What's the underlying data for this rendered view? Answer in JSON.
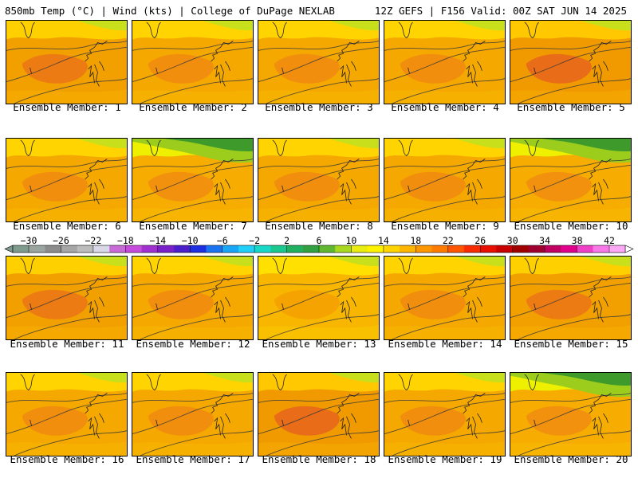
{
  "header": {
    "left": "850mb Temp (°C) | Wind (kts) | College of DuPage NEXLAB",
    "right": "12Z GEFS | F156 Valid: 00Z SAT JUN 14 2025"
  },
  "colorbar": {
    "labels": [
      "−30",
      "−26",
      "−22",
      "−18",
      "−14",
      "−10",
      "−6",
      "−2",
      "2",
      "6",
      "10",
      "14",
      "18",
      "22",
      "26",
      "30",
      "34",
      "38",
      "42"
    ],
    "colors": [
      "#7f9b8f",
      "#9aa59f",
      "#8c8c8c",
      "#a6a6a6",
      "#bcbcbc",
      "#d8d8e8",
      "#c86bd8",
      "#c64bdc",
      "#a030d0",
      "#7a20c8",
      "#4a1ec8",
      "#1c2ee0",
      "#1a74f0",
      "#1aa6f8",
      "#20d0f8",
      "#1ad8c8",
      "#1ac890",
      "#20b060",
      "#31a040",
      "#60b830",
      "#a8d820",
      "#e8ec10",
      "#fff200",
      "#ffd400",
      "#ffb400",
      "#ff9800",
      "#ff7c00",
      "#ff5400",
      "#f82c00",
      "#e80f00",
      "#c80000",
      "#a00000",
      "#a00030",
      "#c00060",
      "#e0008c",
      "#f040c8",
      "#f878e8",
      "#fca8f4"
    ]
  },
  "members": [
    {
      "caption": "Ensemble Member: 1",
      "style": "warm"
    },
    {
      "caption": "Ensemble Member: 2",
      "style": "mild"
    },
    {
      "caption": "Ensemble Member: 3",
      "style": "mild"
    },
    {
      "caption": "Ensemble Member: 4",
      "style": "mild"
    },
    {
      "caption": "Ensemble Member: 5",
      "style": "hot"
    },
    {
      "caption": "Ensemble Member: 6",
      "style": "mild"
    },
    {
      "caption": "Ensemble Member: 7",
      "style": "coolnorth"
    },
    {
      "caption": "Ensemble Member: 8",
      "style": "mild"
    },
    {
      "caption": "Ensemble Member: 9",
      "style": "mild"
    },
    {
      "caption": "Ensemble Member: 10",
      "style": "coolnorth"
    },
    {
      "caption": "Ensemble Member: 11",
      "style": "warm"
    },
    {
      "caption": "Ensemble Member: 12",
      "style": "mild"
    },
    {
      "caption": "Ensemble Member: 13",
      "style": "cool"
    },
    {
      "caption": "Ensemble Member: 14",
      "style": "mild"
    },
    {
      "caption": "Ensemble Member: 15",
      "style": "warm"
    },
    {
      "caption": "Ensemble Member: 16",
      "style": "mild"
    },
    {
      "caption": "Ensemble Member: 17",
      "style": "mild"
    },
    {
      "caption": "Ensemble Member: 18",
      "style": "hot"
    },
    {
      "caption": "Ensemble Member: 19",
      "style": "mild"
    },
    {
      "caption": "Ensemble Member: 20",
      "style": "coolnorth"
    }
  ]
}
